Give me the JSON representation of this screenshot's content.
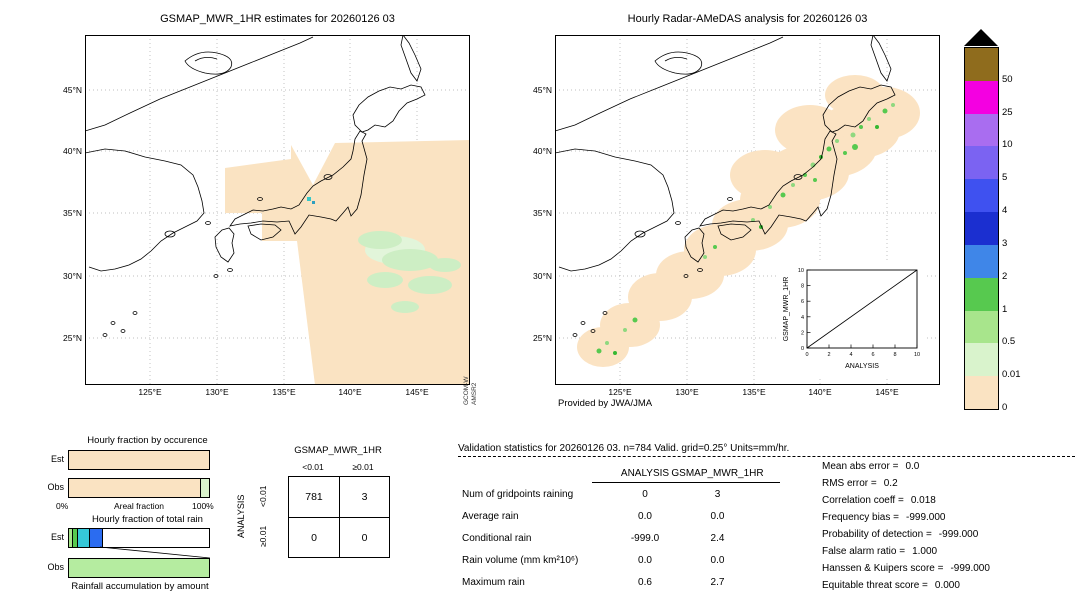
{
  "chart_data": [
    {
      "type": "map",
      "title": "GSMAP_MWR_1HR estimates for 20260126 03",
      "lat_ticks": [
        "45°N",
        "40°N",
        "35°N",
        "30°N",
        "25°N"
      ],
      "lon_ticks": [
        "125°E",
        "130°E",
        "135°E",
        "140°E",
        "145°E"
      ],
      "credit_lines": [
        "GCOM-W",
        "AMSR2"
      ],
      "swath_color": "#fae3c2",
      "rain_area_colors": [
        "#e2f5da",
        "#cdeec4",
        "#35c8c8"
      ]
    },
    {
      "type": "map",
      "title": "Hourly Radar-AMeDAS analysis for 20260126 03",
      "lat_ticks": [
        "45°N",
        "40°N",
        "35°N",
        "30°N",
        "25°N"
      ],
      "lon_ticks": [
        "125°E",
        "130°E",
        "135°E",
        "140°E",
        "145°E"
      ],
      "credit": "Provided by JWA/JMA",
      "analysis_area_color": "#fbe3c3",
      "rain_speckle_colors": [
        "#8fd87f",
        "#57c94f",
        "#36b832"
      ],
      "inset": {
        "type": "scatter",
        "xlabel": "ANALYSIS",
        "ylabel": "GSMAP_MWR_1HR",
        "x_ticks": [
          "0",
          "2",
          "4",
          "6",
          "8",
          "10"
        ],
        "y_ticks": [
          "0",
          "2",
          "4",
          "6",
          "8",
          "10"
        ],
        "xlim": [
          0,
          10
        ],
        "ylim": [
          0,
          10
        ],
        "diagonal_line": true,
        "points": []
      }
    },
    {
      "type": "colorbar",
      "segments": [
        {
          "color": "#8f6c1d",
          "label": "50"
        },
        {
          "color": "#f400e1",
          "label": "25"
        },
        {
          "color": "#a96df0",
          "label": "10"
        },
        {
          "color": "#7b63f2",
          "label": "5"
        },
        {
          "color": "#3f51f0",
          "label": "4"
        },
        {
          "color": "#1b2fd0",
          "label": "3"
        },
        {
          "color": "#3f86e8",
          "label": "2"
        },
        {
          "color": "#57c94f",
          "label": "1"
        },
        {
          "color": "#a8e58c",
          "label": "0.5"
        },
        {
          "color": "#d9f3cc",
          "label": "0.01"
        },
        {
          "color": "#fae3c2",
          "label": "0"
        }
      ]
    },
    {
      "type": "bar",
      "title": "Hourly fraction by occurence",
      "axis": {
        "min_label": "0%",
        "label": "Areal fraction",
        "max_label": "100%"
      },
      "rows": [
        {
          "label": "Est",
          "segments": [
            {
              "color": "#fae3c2",
              "pct": 100
            }
          ]
        },
        {
          "label": "Obs",
          "segments": [
            {
              "color": "#fae3c2",
              "pct": 94
            },
            {
              "color": "#d9f3cc",
              "pct": 6
            }
          ]
        }
      ]
    },
    {
      "type": "bar",
      "title": "Hourly fraction of total rain",
      "footer": "Rainfall accumulation by amount",
      "rows": [
        {
          "label": "Est",
          "segments": [
            {
              "color": "#a8e58c",
              "pct": 2
            },
            {
              "color": "#57c94f",
              "pct": 3
            },
            {
              "color": "#35c8d8",
              "pct": 8
            },
            {
              "color": "#2b6cf0",
              "pct": 9
            },
            {
              "color": "#ffffff",
              "pct": 78
            }
          ]
        },
        {
          "label": "Obs",
          "segments": [
            {
              "color": "#b5eca0",
              "pct": 100
            }
          ]
        }
      ]
    },
    {
      "type": "table",
      "title": "GSMAP_MWR_1HR",
      "row_axis_label": "ANALYSIS",
      "col_labels": [
        "<0.01",
        "≥0.01"
      ],
      "row_labels": [
        "<0.01",
        "≥0.01"
      ],
      "values": [
        [
          "781",
          "3"
        ],
        [
          "0",
          "0"
        ]
      ]
    },
    {
      "type": "table",
      "header": "Validation statistics for 20260126 03. n=784 Valid. grid=0.25° Units=mm/hr.",
      "columns": [
        "ANALYSIS",
        "GSMAP_MWR_1HR"
      ],
      "rows": [
        {
          "label": "Num of gridpoints raining",
          "analysis": "0",
          "gsmap": "3"
        },
        {
          "label": "Average rain",
          "analysis": "0.0",
          "gsmap": "0.0"
        },
        {
          "label": "Conditional rain",
          "analysis": "-999.0",
          "gsmap": "2.4"
        },
        {
          "label": "Rain volume (mm km²10⁶)",
          "analysis": "0.0",
          "gsmap": "0.0"
        },
        {
          "label": "Maximum rain",
          "analysis": "0.6",
          "gsmap": "2.7"
        }
      ],
      "scores": [
        {
          "label": "Mean abs error =",
          "value": "0.0"
        },
        {
          "label": "RMS error =",
          "value": "0.2"
        },
        {
          "label": "Correlation coeff =",
          "value": "0.018"
        },
        {
          "label": "Frequency bias =",
          "value": "-999.000"
        },
        {
          "label": "Probability of detection =",
          "value": "-999.000"
        },
        {
          "label": "False alarm ratio =",
          "value": "1.000"
        },
        {
          "label": "Hanssen & Kuipers score =",
          "value": "-999.000"
        },
        {
          "label": "Equitable threat score =",
          "value": "0.000"
        }
      ]
    }
  ]
}
